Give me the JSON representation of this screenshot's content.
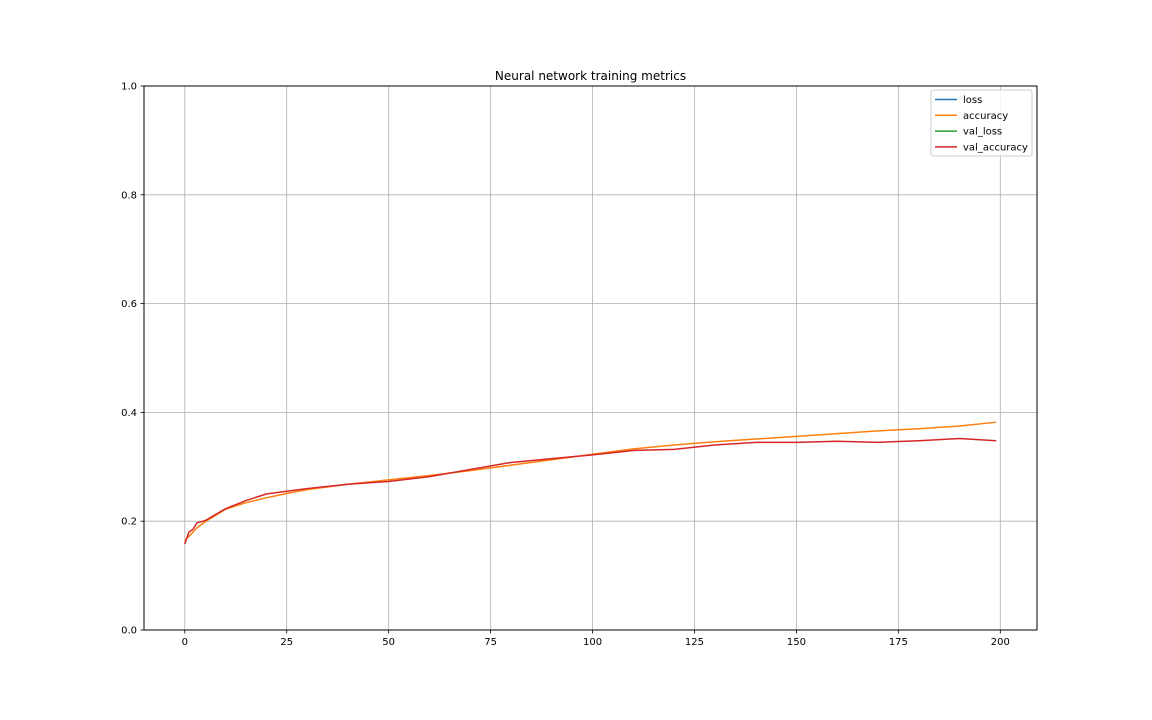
{
  "chart_data": {
    "type": "line",
    "title": "Neural network training metrics",
    "xlabel": "",
    "ylabel": "",
    "xlim": [
      -10,
      209
    ],
    "ylim": [
      0.0,
      1.0
    ],
    "xticks": [
      0,
      25,
      50,
      75,
      100,
      125,
      150,
      175,
      200
    ],
    "xtick_labels": [
      "0",
      "25",
      "50",
      "75",
      "100",
      "125",
      "150",
      "175",
      "200"
    ],
    "yticks": [
      0.0,
      0.2,
      0.4,
      0.6,
      0.8,
      1.0
    ],
    "ytick_labels": [
      "0.0",
      "0.2",
      "0.4",
      "0.6",
      "0.8",
      "1.0"
    ],
    "grid": true,
    "legend_position": "top-right",
    "x_keypoints": [
      0,
      1,
      2,
      3,
      5,
      10,
      15,
      20,
      25,
      30,
      40,
      50,
      60,
      70,
      80,
      90,
      100,
      110,
      120,
      130,
      140,
      150,
      160,
      170,
      180,
      190,
      199
    ],
    "series": [
      {
        "name": "loss",
        "color": "#1f77b4",
        "visible": false,
        "x": [],
        "values": []
      },
      {
        "name": "accuracy",
        "color": "#ff7f0e",
        "values": [
          0.165,
          0.172,
          0.18,
          0.188,
          0.199,
          0.222,
          0.234,
          0.243,
          0.251,
          0.258,
          0.268,
          0.276,
          0.284,
          0.293,
          0.303,
          0.313,
          0.323,
          0.333,
          0.34,
          0.346,
          0.351,
          0.356,
          0.361,
          0.366,
          0.37,
          0.375,
          0.382
        ]
      },
      {
        "name": "val_loss",
        "color": "#2ca02c",
        "visible": false,
        "x": [],
        "values": []
      },
      {
        "name": "val_accuracy",
        "color": "#d62728",
        "values": [
          0.158,
          0.18,
          0.185,
          0.197,
          0.201,
          0.223,
          0.238,
          0.25,
          0.255,
          0.26,
          0.268,
          0.273,
          0.282,
          0.295,
          0.308,
          0.315,
          0.322,
          0.33,
          0.332,
          0.34,
          0.345,
          0.345,
          0.347,
          0.345,
          0.348,
          0.352,
          0.348
        ]
      }
    ]
  }
}
